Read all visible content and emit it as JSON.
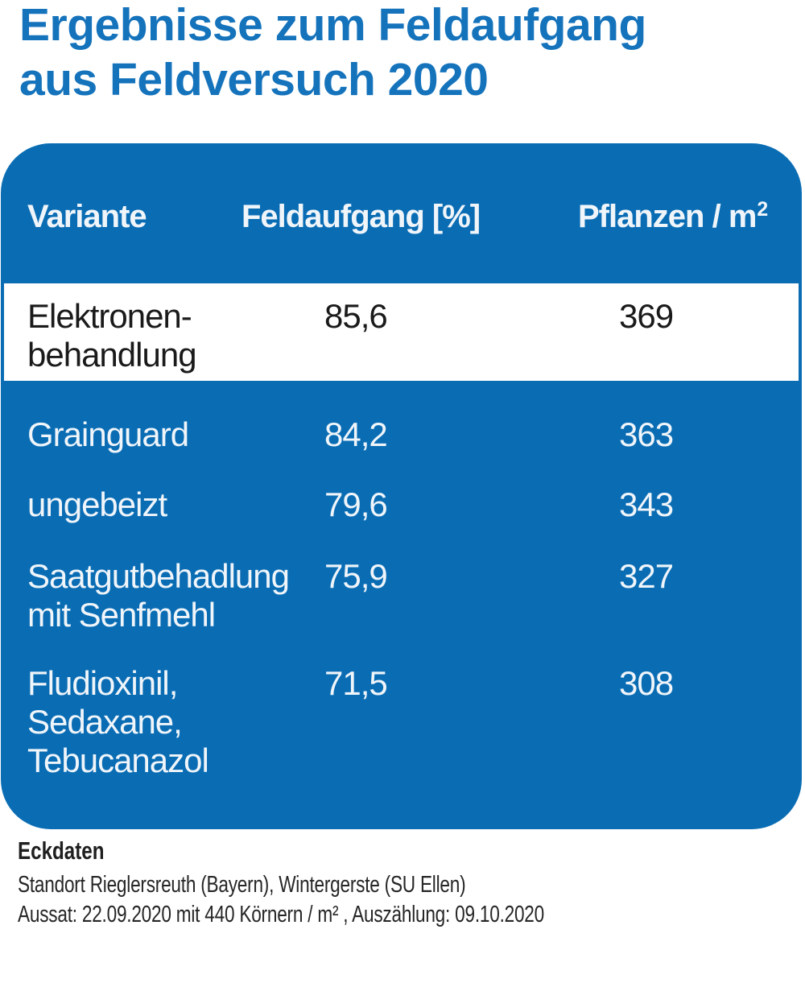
{
  "title": {
    "line1": "Ergebnisse zum Feldaufgang",
    "line2": "aus Feldversuch 2020"
  },
  "table": {
    "headers": {
      "col1": "Variante",
      "col2": "Feldaufgang [%]",
      "col3_text": "Pflanzen / m",
      "col3_sup": "2"
    },
    "rows": [
      {
        "name": "Elektronen-\nbehandlung",
        "feldaufgang": "85,6",
        "pflanzen": "369",
        "highlighted": true
      },
      {
        "name": "Grainguard",
        "feldaufgang": "84,2",
        "pflanzen": "363",
        "highlighted": false
      },
      {
        "name": "ungebeizt",
        "feldaufgang": "79,6",
        "pflanzen": "343",
        "highlighted": false
      },
      {
        "name": "Saatgutbehadlung\nmit Senfmehl",
        "feldaufgang": "75,9",
        "pflanzen": "327",
        "highlighted": false
      },
      {
        "name": "Fludioxinil,\nSedaxane,\nTebucanazol",
        "feldaufgang": "71,5",
        "pflanzen": "308",
        "highlighted": false
      }
    ]
  },
  "footer": {
    "heading": "Eckdaten",
    "line1": "Standort Rieglersreuth (Bayern), Wintergerste (SU Ellen)",
    "line2": "Aussat: 22.09.2020 mit 440 Körnern / m² , Auszählung: 09.10.2020"
  },
  "colors": {
    "panel_blue": "#0a6db4",
    "title_blue": "#1573bc",
    "row_text": "#f0f5fa",
    "dark_text": "#1a1a1a",
    "footer_text": "#262626"
  },
  "chart_data": {
    "type": "table",
    "title": "Ergebnisse zum Feldaufgang aus Feldversuch 2020",
    "columns": [
      "Variante",
      "Feldaufgang [%]",
      "Pflanzen / m²"
    ],
    "rows": [
      [
        "Elektronenbehandlung",
        85.6,
        369
      ],
      [
        "Grainguard",
        84.2,
        363
      ],
      [
        "ungebeizt",
        79.6,
        343
      ],
      [
        "Saatgutbehadlung mit Senfmehl",
        75.9,
        327
      ],
      [
        "Fludioxinil, Sedaxane, Tebucanazol",
        71.5,
        308
      ]
    ],
    "highlighted_row": "Elektronenbehandlung",
    "notes": "Standort Rieglersreuth (Bayern), Wintergerste (SU Ellen); Aussat: 22.09.2020 mit 440 Körnern / m², Auszählung: 09.10.2020"
  }
}
